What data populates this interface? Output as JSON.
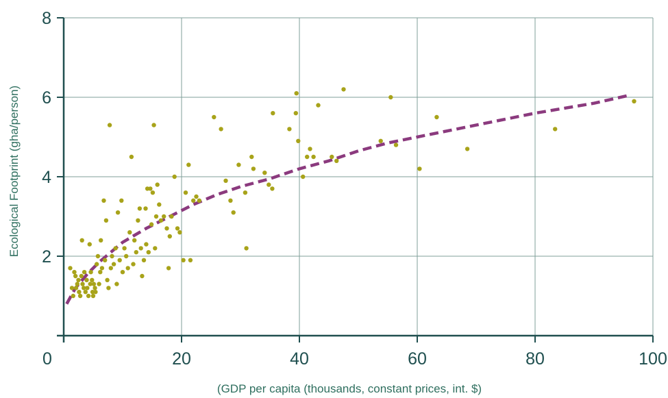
{
  "chart_data": {
    "type": "scatter",
    "title": "",
    "xlabel": "(GDP per capita (thousands, constant prices, int. $)",
    "ylabel": "Ecological Footprint (gha/person)",
    "xlim": [
      0,
      100
    ],
    "ylim": [
      0,
      8
    ],
    "x_ticks": [
      "0",
      "20",
      "40",
      "60",
      "80",
      "100"
    ],
    "y_ticks": [
      "2",
      "4",
      "6",
      "8"
    ],
    "grid": true,
    "colors": {
      "points": "#a8a31a",
      "trend": "#8b3a7e",
      "grid": "#7f9f9a",
      "axis": "#1f4f4f"
    },
    "series": [
      {
        "type": "scatter",
        "points": [
          [
            1.1,
            1.7
          ],
          [
            1.4,
            1.2
          ],
          [
            1.6,
            1.0
          ],
          [
            1.8,
            1.6
          ],
          [
            2.0,
            1.5
          ],
          [
            2.1,
            1.2
          ],
          [
            2.3,
            1.3
          ],
          [
            2.5,
            1.4
          ],
          [
            2.6,
            1.1
          ],
          [
            2.8,
            1.0
          ],
          [
            3.0,
            1.5
          ],
          [
            3.1,
            2.4
          ],
          [
            3.2,
            1.3
          ],
          [
            3.4,
            1.2
          ],
          [
            3.5,
            1.6
          ],
          [
            3.7,
            1.1
          ],
          [
            3.9,
            1.4
          ],
          [
            4.0,
            1.2
          ],
          [
            4.2,
            1.0
          ],
          [
            4.4,
            2.3
          ],
          [
            4.5,
            1.3
          ],
          [
            4.6,
            1.6
          ],
          [
            4.8,
            1.4
          ],
          [
            4.9,
            1.1
          ],
          [
            5.0,
            1.0
          ],
          [
            5.1,
            1.3
          ],
          [
            5.3,
            1.2
          ],
          [
            5.4,
            1.1
          ],
          [
            5.6,
            1.8
          ],
          [
            5.8,
            2.0
          ],
          [
            6.0,
            1.3
          ],
          [
            6.2,
            1.6
          ],
          [
            6.3,
            2.4
          ],
          [
            6.5,
            1.7
          ],
          [
            6.8,
            3.4
          ],
          [
            7.0,
            1.9
          ],
          [
            7.2,
            2.9
          ],
          [
            7.4,
            1.4
          ],
          [
            7.6,
            1.2
          ],
          [
            7.8,
            5.3
          ],
          [
            8.0,
            1.7
          ],
          [
            8.2,
            2.0
          ],
          [
            8.5,
            1.8
          ],
          [
            8.8,
            2.2
          ],
          [
            9.0,
            1.3
          ],
          [
            9.2,
            3.1
          ],
          [
            9.5,
            1.9
          ],
          [
            9.8,
            3.4
          ],
          [
            10.0,
            1.6
          ],
          [
            10.3,
            2.2
          ],
          [
            10.6,
            2.0
          ],
          [
            10.9,
            1.7
          ],
          [
            11.2,
            2.6
          ],
          [
            11.5,
            4.5
          ],
          [
            11.8,
            1.8
          ],
          [
            12.0,
            2.4
          ],
          [
            12.3,
            2.1
          ],
          [
            12.6,
            2.9
          ],
          [
            12.9,
            3.2
          ],
          [
            13.1,
            2.2
          ],
          [
            13.3,
            1.5
          ],
          [
            13.6,
            1.9
          ],
          [
            13.9,
            3.2
          ],
          [
            14.0,
            2.3
          ],
          [
            14.2,
            3.7
          ],
          [
            14.4,
            2.1
          ],
          [
            14.7,
            3.7
          ],
          [
            14.9,
            2.8
          ],
          [
            15.1,
            3.6
          ],
          [
            15.3,
            5.3
          ],
          [
            15.5,
            2.2
          ],
          [
            15.7,
            3.0
          ],
          [
            15.9,
            3.8
          ],
          [
            16.2,
            3.3
          ],
          [
            16.5,
            2.9
          ],
          [
            17.0,
            3.0
          ],
          [
            17.5,
            2.7
          ],
          [
            17.8,
            1.7
          ],
          [
            18.0,
            2.5
          ],
          [
            18.3,
            3.0
          ],
          [
            18.8,
            4.0
          ],
          [
            19.3,
            2.7
          ],
          [
            19.7,
            2.6
          ],
          [
            20.3,
            1.9
          ],
          [
            20.7,
            3.6
          ],
          [
            21.2,
            4.3
          ],
          [
            21.5,
            1.9
          ],
          [
            22.0,
            3.4
          ],
          [
            22.5,
            3.5
          ],
          [
            23.0,
            3.4
          ],
          [
            25.5,
            5.5
          ],
          [
            26.7,
            5.2
          ],
          [
            27.5,
            3.9
          ],
          [
            28.3,
            3.4
          ],
          [
            28.8,
            3.1
          ],
          [
            29.7,
            4.3
          ],
          [
            30.8,
            3.6
          ],
          [
            31.0,
            2.2
          ],
          [
            31.9,
            4.5
          ],
          [
            32.2,
            4.2
          ],
          [
            34.1,
            4.1
          ],
          [
            34.8,
            3.8
          ],
          [
            35.4,
            3.7
          ],
          [
            35.5,
            5.6
          ],
          [
            38.3,
            5.2
          ],
          [
            39.4,
            5.6
          ],
          [
            39.5,
            6.1
          ],
          [
            39.8,
            4.9
          ],
          [
            40.6,
            4.0
          ],
          [
            41.3,
            4.5
          ],
          [
            41.8,
            4.7
          ],
          [
            42.4,
            4.5
          ],
          [
            43.2,
            5.8
          ],
          [
            45.5,
            4.5
          ],
          [
            46.3,
            4.4
          ],
          [
            47.5,
            6.2
          ],
          [
            53.8,
            4.9
          ],
          [
            55.5,
            6.0
          ],
          [
            56.4,
            4.8
          ],
          [
            60.4,
            4.2
          ],
          [
            63.3,
            5.5
          ],
          [
            68.5,
            4.7
          ],
          [
            83.4,
            5.2
          ],
          [
            96.8,
            5.9
          ]
        ]
      },
      {
        "type": "line",
        "style": "dashed",
        "points": [
          [
            0.5,
            0.8
          ],
          [
            2,
            1.2
          ],
          [
            4,
            1.55
          ],
          [
            6,
            1.85
          ],
          [
            8,
            2.1
          ],
          [
            10,
            2.35
          ],
          [
            14,
            2.7
          ],
          [
            18,
            3.0
          ],
          [
            22,
            3.3
          ],
          [
            26,
            3.55
          ],
          [
            30,
            3.75
          ],
          [
            35,
            3.95
          ],
          [
            40,
            4.2
          ],
          [
            45,
            4.4
          ],
          [
            50,
            4.65
          ],
          [
            55,
            4.85
          ],
          [
            60,
            5.0
          ],
          [
            70,
            5.3
          ],
          [
            80,
            5.6
          ],
          [
            90,
            5.85
          ],
          [
            96,
            6.05
          ]
        ]
      }
    ]
  }
}
